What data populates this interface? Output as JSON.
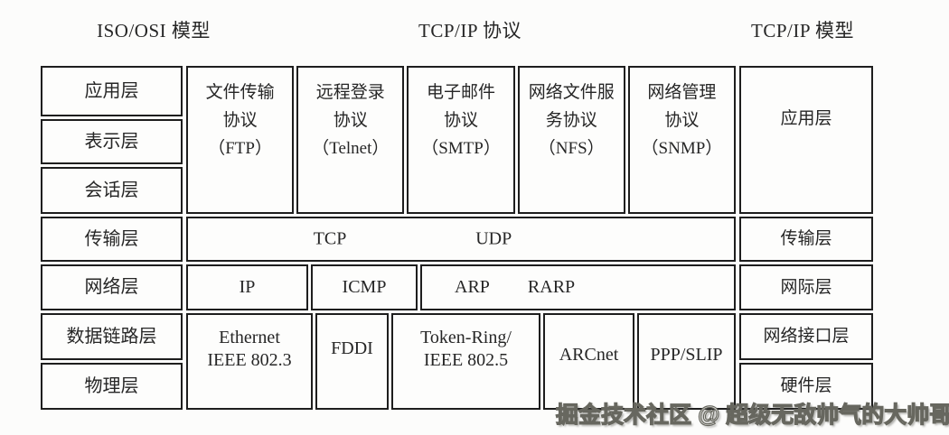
{
  "headers": {
    "left": "ISO/OSI 模型",
    "middle": "TCP/IP 协议",
    "right": "TCP/IP 模型"
  },
  "osi_layers": [
    "应用层",
    "表示层",
    "会话层",
    "传输层",
    "网络层",
    "数据链路层",
    "物理层"
  ],
  "protocols_top": [
    {
      "name": "ftp",
      "lines": [
        "文件传输",
        "协议",
        "（FTP）"
      ]
    },
    {
      "name": "telnet",
      "lines": [
        "远程登录",
        "协议",
        "（Telnet）"
      ]
    },
    {
      "name": "smtp",
      "lines": [
        "电子邮件",
        "协议",
        "（SMTP）"
      ]
    },
    {
      "name": "nfs",
      "lines": [
        "网络文件服",
        "务协议",
        "（NFS）"
      ]
    },
    {
      "name": "snmp",
      "lines": [
        "网络管理",
        "协议",
        "（SNMP）"
      ]
    }
  ],
  "transport": {
    "tcp": "TCP",
    "udp": "UDP"
  },
  "network": {
    "ip": "IP",
    "icmp": "ICMP",
    "arp": "ARP",
    "rarp": "RARP"
  },
  "datalink": {
    "ethernet": {
      "lines": [
        "Ethernet",
        "IEEE 802.3"
      ]
    },
    "fddi": "FDDI",
    "token_ring": {
      "lines": [
        "Token-Ring/",
        "IEEE 802.5"
      ]
    },
    "arcnet": "ARCnet",
    "ppp_slip": "PPP/SLIP"
  },
  "tcpip_layers": [
    "应用层",
    "传输层",
    "网际层",
    "网络接口层",
    "硬件层"
  ],
  "watermark": "掘金技术社区 @ 超级无敌帅气的大帅哥",
  "colors": {
    "border": "#1e1e1e",
    "text": "#262626",
    "background": "#fcfcfb",
    "cell_background": "#fdfdfc",
    "watermark_fill": "#f7f7f4",
    "watermark_outline": "#67675f"
  }
}
